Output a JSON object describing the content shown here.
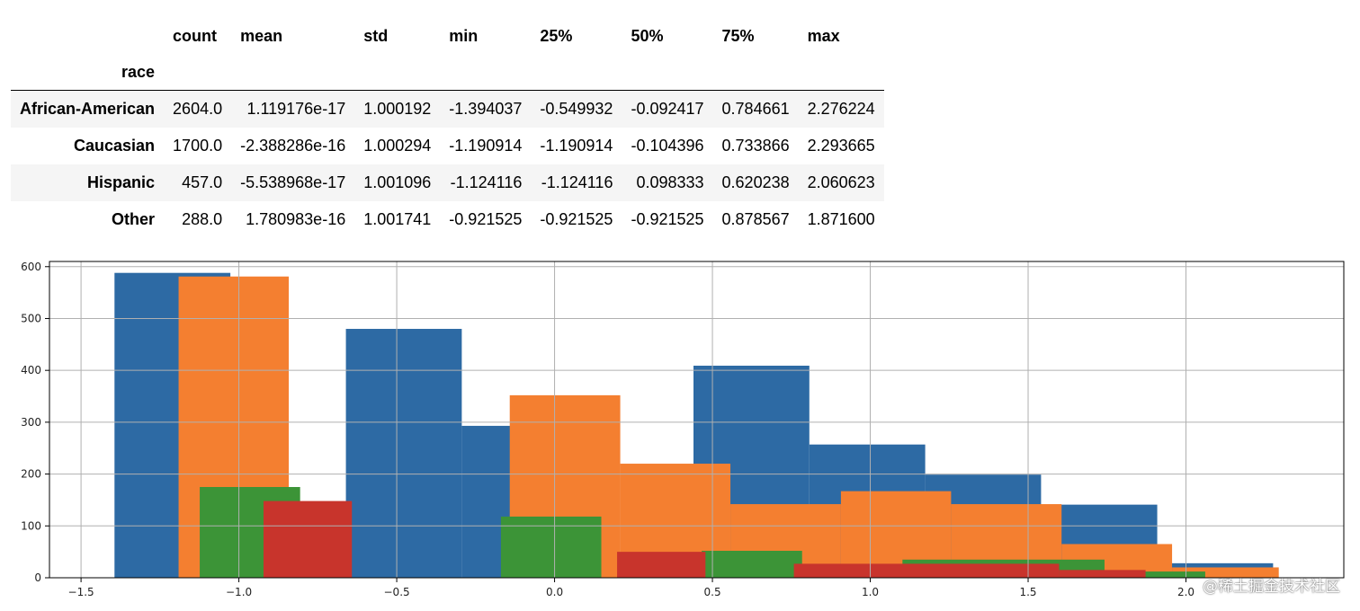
{
  "table": {
    "columns": [
      "count",
      "mean",
      "std",
      "min",
      "25%",
      "50%",
      "75%",
      "max"
    ],
    "index_name": "race",
    "rows": [
      {
        "label": "African-American",
        "values": [
          "2604.0",
          "1.119176e-17",
          "1.000192",
          "-1.394037",
          "-0.549932",
          "-0.092417",
          "0.784661",
          "2.276224"
        ]
      },
      {
        "label": "Caucasian",
        "values": [
          "1700.0",
          "-2.388286e-16",
          "1.000294",
          "-1.190914",
          "-1.190914",
          "-0.104396",
          "0.733866",
          "2.293665"
        ]
      },
      {
        "label": "Hispanic",
        "values": [
          "457.0",
          "-5.538968e-17",
          "1.001096",
          "-1.124116",
          "-1.124116",
          "0.098333",
          "0.620238",
          "2.060623"
        ]
      },
      {
        "label": "Other",
        "values": [
          "288.0",
          "1.780983e-16",
          "1.001741",
          "-0.921525",
          "-0.921525",
          "-0.921525",
          "0.878567",
          "1.871600"
        ]
      }
    ]
  },
  "chart_data": {
    "type": "bar",
    "subtype": "overlaid-histogram",
    "title": "",
    "xlabel": "",
    "ylabel": "",
    "xlim": [
      -1.6,
      2.5
    ],
    "ylim": [
      0,
      610
    ],
    "xticks": [
      -1.5,
      -1.0,
      -0.5,
      0.0,
      0.5,
      1.0,
      1.5,
      2.0
    ],
    "xtick_labels": [
      "−1.5",
      "−1.0",
      "−0.5",
      "0.0",
      "0.5",
      "1.0",
      "1.5",
      "2.0"
    ],
    "yticks": [
      0,
      100,
      200,
      300,
      400,
      500,
      600
    ],
    "ytick_labels": [
      "0",
      "100",
      "200",
      "300",
      "400",
      "500",
      "600"
    ],
    "grid": true,
    "legend": "none",
    "series": [
      {
        "color": "#2d6aa4",
        "bins": [
          [
            -1.394,
            -1.027,
            588
          ],
          [
            -0.661,
            -0.294,
            480
          ],
          [
            -0.294,
            0.073,
            293
          ],
          [
            0.44,
            0.807,
            409
          ],
          [
            0.807,
            1.174,
            257
          ],
          [
            1.174,
            1.541,
            199
          ],
          [
            1.541,
            1.909,
            141
          ],
          [
            1.909,
            2.276,
            28
          ]
        ]
      },
      {
        "color": "#f47f30",
        "bins": [
          [
            -1.191,
            -0.842,
            581
          ],
          [
            -0.142,
            0.208,
            352
          ],
          [
            0.208,
            0.557,
            220
          ],
          [
            0.557,
            0.907,
            142
          ],
          [
            0.907,
            1.256,
            167
          ],
          [
            1.256,
            1.606,
            142
          ],
          [
            1.606,
            1.956,
            65
          ],
          [
            1.956,
            2.294,
            20
          ]
        ]
      },
      {
        "color": "#3c9437",
        "bins": [
          [
            -1.124,
            -0.806,
            175
          ],
          [
            -0.17,
            0.148,
            118
          ],
          [
            0.466,
            0.784,
            52
          ],
          [
            1.102,
            1.742,
            35
          ],
          [
            1.742,
            2.061,
            12
          ]
        ]
      },
      {
        "color": "#c8342c",
        "bins": [
          [
            -0.922,
            -0.642,
            148
          ],
          [
            0.198,
            0.478,
            50
          ],
          [
            0.758,
            1.598,
            27
          ],
          [
            1.598,
            1.872,
            15
          ]
        ]
      }
    ]
  },
  "watermark": "@稀土掘金技术社区"
}
